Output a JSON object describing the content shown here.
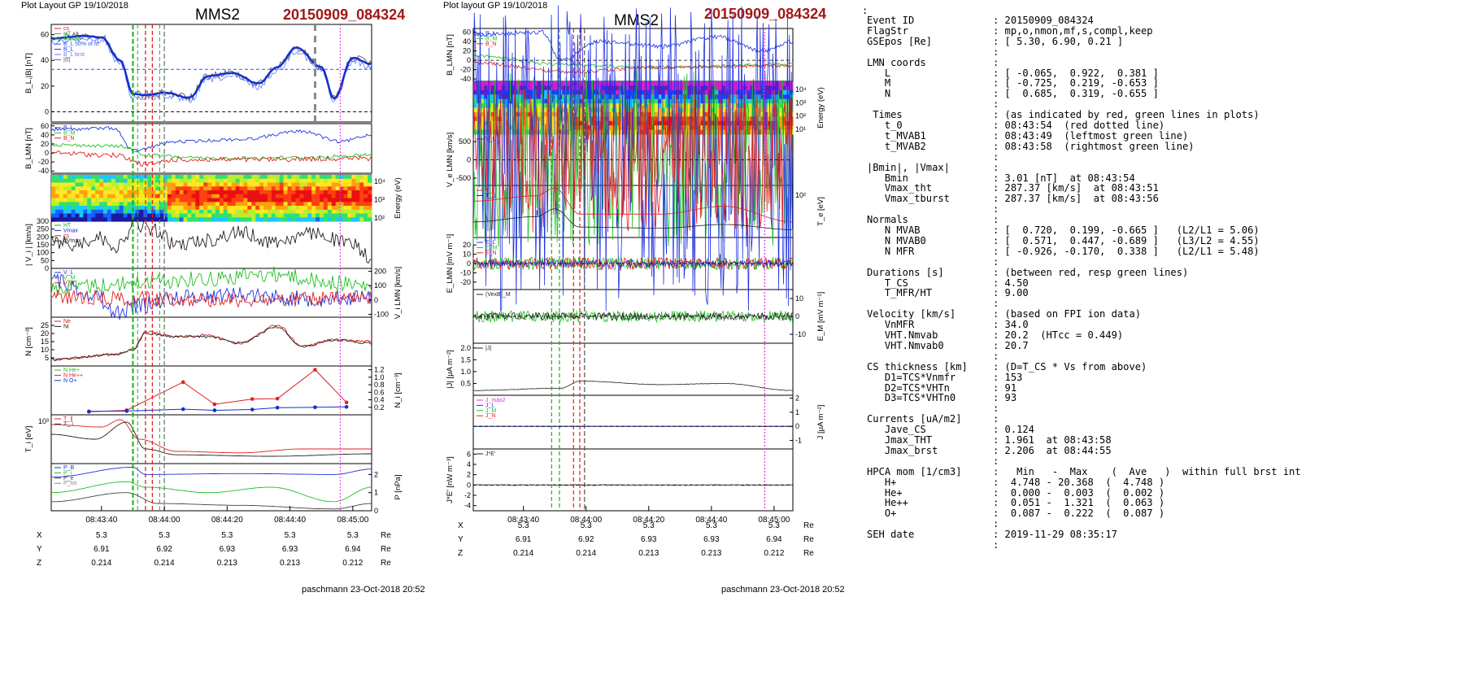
{
  "left": {
    "header": {
      "plot_layout": "Plot Layout GP 19/10/2018",
      "title": "MMS2",
      "event": "20150909_084324"
    },
    "footer": "paschmann 23-Oct-2018 20:52",
    "xticks": [
      "08:43:40",
      "08:44:00",
      "08:44:20",
      "08:44:40",
      "08:45:00"
    ],
    "pos": {
      "rows": [
        {
          "label": "X",
          "values": [
            "5.3",
            "5.3",
            "5.3",
            "5.3",
            "5.3"
          ],
          "unit": "Re"
        },
        {
          "label": "Y",
          "values": [
            "6.91",
            "6.92",
            "6.93",
            "6.93",
            "6.94"
          ],
          "unit": "Re"
        },
        {
          "label": "Z",
          "values": [
            "0.214",
            "0.214",
            "0.213",
            "0.213",
            "0.212"
          ],
          "unit": "Re"
        }
      ]
    },
    "panels": [
      {
        "ylabel": "B_L,|B| [nT]",
        "yticks": [
          "60",
          "40",
          "20",
          "0"
        ],
        "legend": [
          "cs",
          "HT",
          "MVAB",
          "B_L 50% of fit",
          "B_L",
          "B_L brst",
          "|B|"
        ]
      },
      {
        "ylabel": "B_LMN [nT]",
        "yticks": [
          "60",
          "40",
          "20",
          "0",
          "-20",
          "-40"
        ],
        "legend": [
          "B_L",
          "B_M",
          "B_N"
        ]
      },
      {
        "ylabel": "Energy (eV)",
        "yticks": [
          "10⁴",
          "10³",
          "10²"
        ]
      },
      {
        "ylabel": "| V_i | [km/s]",
        "yticks": [
          "300",
          "250",
          "200",
          "150",
          "100",
          "50",
          "0"
        ],
        "legend": [
          "HT",
          "Vmax",
          "cs",
          "dVmax"
        ]
      },
      {
        "ylabel": "V_i LMN [km/s]",
        "yticks": [
          "200",
          "100",
          "0",
          "-100"
        ],
        "legend": [
          "V_L",
          "V_M",
          "V_N"
        ]
      },
      {
        "ylabel": "N [cm⁻³]",
        "yticks": [
          "25",
          "20",
          "15",
          "10",
          "5"
        ],
        "legend": [
          "Ne",
          "Ni"
        ]
      },
      {
        "ylabel": "N_i [cm⁻³]",
        "yticks": [
          "1.2",
          "1.0",
          "0.8",
          "0.6",
          "0.4",
          "0.2"
        ],
        "legend": [
          "N He+",
          "N He++",
          "N O+"
        ]
      },
      {
        "ylabel": "T_i [eV]",
        "yticks": [
          "10³"
        ],
        "legend": [
          "T_∥",
          "T_⊥"
        ]
      },
      {
        "ylabel": "P [nPa]",
        "yticks": [
          "2",
          "1",
          "0"
        ],
        "legend": [
          "P_B",
          "P_i",
          "P_e",
          "P_tot"
        ]
      }
    ]
  },
  "middle": {
    "header": {
      "plot_layout": "Plot layout GP 19/10/2018",
      "title": "MMS2",
      "event": "20150909_084324"
    },
    "footer": "paschmann 23-Oct-2018 20:52",
    "xticks": [
      "08:43:40",
      "08:44:00",
      "08:44:20",
      "08:44:40",
      "08:45:00"
    ],
    "pos": {
      "rows": [
        {
          "label": "X",
          "values": [
            "5.3",
            "5.3",
            "5.3",
            "5.3",
            "5.3"
          ],
          "unit": "Re"
        },
        {
          "label": "Y",
          "values": [
            "6.91",
            "6.92",
            "6.93",
            "6.93",
            "6.94"
          ],
          "unit": "Re"
        },
        {
          "label": "Z",
          "values": [
            "0.214",
            "0.214",
            "0.213",
            "0.213",
            "0.212"
          ],
          "unit": "Re"
        }
      ]
    },
    "panels": [
      {
        "ylabel": "B_LMN [nT]",
        "yticks": [
          "60",
          "40",
          "20",
          "0",
          "-20",
          "-40"
        ],
        "legend": [
          "B_L",
          "B_M",
          "B_N"
        ]
      },
      {
        "ylabel": "Energy (eV)",
        "yticks": [
          "10⁴",
          "10³",
          "10²",
          "10¹"
        ]
      },
      {
        "ylabel": "V_e LMN [km/s]",
        "yticks": [
          "500",
          "0",
          "-500"
        ],
        "legend": [
          "V_L"
        ]
      },
      {
        "ylabel": "T_e [eV]",
        "yticks": [
          "10²"
        ],
        "legend": [
          "T_∥",
          "T_⊥"
        ]
      },
      {
        "ylabel": "E_LMN [mV m⁻¹]",
        "yticks": [
          "20",
          "10",
          "0",
          "-10",
          "-20"
        ],
        "legend": [
          "E_L",
          "E_M",
          "E_N"
        ]
      },
      {
        "ylabel": "E_M [mV m⁻¹]",
        "yticks": [
          "10",
          "0",
          "-10"
        ],
        "legend": [
          "(VexB)_M"
        ]
      },
      {
        "ylabel": "|J| [μA m⁻²]",
        "yticks": [
          "2.0",
          "1.5",
          "1.0",
          "0.5"
        ],
        "legend": [
          "|J|"
        ]
      },
      {
        "ylabel": "J [μA m⁻²]",
        "yticks": [
          "2",
          "1",
          "0",
          "-1"
        ],
        "legend": [
          "J_max2",
          "J_L",
          "J_M",
          "J_N"
        ]
      },
      {
        "ylabel": "J*E' [nW m⁻³]",
        "yticks": [
          "6",
          "4",
          "2",
          "0",
          "-2",
          "-4"
        ],
        "legend": [
          "J*E'"
        ]
      }
    ]
  },
  "right": {
    "top_colon": ":",
    "lines": [
      {
        "k": "Event ID",
        "v": ": 20150909_084324"
      },
      {
        "k": "FlagStr",
        "v": ": mp,o,nmon,mf,s,compl,keep"
      },
      {
        "k": "GSEpos [Re]",
        "v": ": [ 5.30, 6.90, 0.21 ]"
      },
      {
        "k": "",
        "v": ":"
      },
      {
        "k": "LMN coords",
        "v": ":"
      },
      {
        "k": "   L",
        "v": ": [ -0.065,  0.922,  0.381 ]"
      },
      {
        "k": "   M",
        "v": ": [ -0.725,  0.219, -0.653 ]"
      },
      {
        "k": "   N",
        "v": ": [  0.685,  0.319, -0.655 ]"
      },
      {
        "k": "",
        "v": ":"
      },
      {
        "k": " Times",
        "v": ": (as indicated by red, green lines in plots)"
      },
      {
        "k": "   t_0",
        "v": ": 08:43:54  (red dotted line)"
      },
      {
        "k": "   t_MVAB1",
        "v": ": 08:43:49  (leftmost green line)"
      },
      {
        "k": "   t_MVAB2",
        "v": ": 08:43:58  (rightmost green line)"
      },
      {
        "k": "",
        "v": ":"
      },
      {
        "k": "|Bmin|, |Vmax|",
        "v": ":"
      },
      {
        "k": "   Bmin",
        "v": ": 3.01 [nT]  at 08:43:54"
      },
      {
        "k": "   Vmax_tht",
        "v": ": 287.37 [km/s]  at 08:43:51"
      },
      {
        "k": "   Vmax_tburst",
        "v": ": 287.37 [km/s]  at 08:43:56"
      },
      {
        "k": "",
        "v": ":"
      },
      {
        "k": "Normals",
        "v": ":"
      },
      {
        "k": "   N MVAB",
        "v": ": [  0.720,  0.199, -0.665 ]   (L2/L1 = 5.06)"
      },
      {
        "k": "   N MVAB0",
        "v": ": [  0.571,  0.447, -0.689 ]   (L3/L2 = 4.55)"
      },
      {
        "k": "   N MFR",
        "v": ": [ -0.926, -0.170,  0.338 ]   (L2/L1 = 5.48)"
      },
      {
        "k": "",
        "v": ":"
      },
      {
        "k": "Durations [s]",
        "v": ": (between red, resp green lines)"
      },
      {
        "k": "   T_CS",
        "v": ": 4.50"
      },
      {
        "k": "   T_MFR/HT",
        "v": ": 9.00"
      },
      {
        "k": "",
        "v": ":"
      },
      {
        "k": "Velocity [km/s]",
        "v": ": (based on FPI ion data)"
      },
      {
        "k": "   VnMFR",
        "v": ": 34.0"
      },
      {
        "k": "   VHT.Nmvab",
        "v": ": 20.2  (HTcc = 0.449)"
      },
      {
        "k": "   VHT.Nmvab0",
        "v": ": 20.7"
      },
      {
        "k": "",
        "v": ":"
      },
      {
        "k": "CS thickness [km]",
        "v": ": (D=T_CS * Vs from above)"
      },
      {
        "k": "   D1=TCS*Vnmfr",
        "v": ": 153"
      },
      {
        "k": "   D2=TCS*VHTn",
        "v": ": 91"
      },
      {
        "k": "   D3=TCS*VHTn0",
        "v": ": 93"
      },
      {
        "k": "",
        "v": ":"
      },
      {
        "k": "Currents [uA/m2]",
        "v": ":"
      },
      {
        "k": "   Jave_CS",
        "v": ": 0.124"
      },
      {
        "k": "   Jmax_THT",
        "v": ": 1.961  at 08:43:58"
      },
      {
        "k": "   Jmax_brst",
        "v": ": 2.206  at 08:44:55"
      },
      {
        "k": "",
        "v": ":"
      },
      {
        "k": "HPCA mom [1/cm3]",
        "v": ":   Min   -  Max    (  Ave   )  within full brst int"
      },
      {
        "k": "   H+",
        "v": ":  4.748 - 20.368  (  4.748 )"
      },
      {
        "k": "   He+",
        "v": ":  0.000 -  0.003  (  0.002 )"
      },
      {
        "k": "   He++",
        "v": ":  0.051 -  1.321  (  0.063 )"
      },
      {
        "k": "   O+",
        "v": ":  0.087 -  0.222  (  0.087 )"
      },
      {
        "k": "",
        "v": ":"
      },
      {
        "k": "SEH date",
        "v": ": 2019-11-29 08:35:17"
      },
      {
        "k": "",
        "v": ":"
      }
    ]
  },
  "chart_data": [
    {
      "type": "line",
      "title": "MMS2",
      "x_range": [
        "08:43:24",
        "08:45:06"
      ],
      "note_series": "B_L fit (thick blue) approximate knots, time in s after 08:43:24",
      "series": [
        {
          "name": "B_L",
          "x": [
            0,
            10,
            16,
            22,
            26,
            30,
            36,
            44,
            50,
            58,
            66,
            72,
            78,
            86,
            90,
            96,
            102
          ],
          "values": [
            57,
            59,
            58,
            40,
            14,
            13,
            15,
            11,
            28,
            30,
            22,
            35,
            50,
            35,
            10,
            42,
            37
          ]
        },
        {
          "name": "N He++",
          "x": [
            12,
            24,
            42,
            52,
            64,
            72,
            84,
            94
          ],
          "values": [
            0.08,
            0.12,
            0.87,
            0.28,
            0.42,
            0.43,
            1.2,
            0.33
          ]
        },
        {
          "name": "N O+",
          "x": [
            12,
            24,
            42,
            52,
            64,
            72,
            84,
            94
          ],
          "values": [
            0.09,
            0.1,
            0.15,
            0.12,
            0.14,
            0.19,
            0.2,
            0.21
          ]
        }
      ]
    }
  ]
}
